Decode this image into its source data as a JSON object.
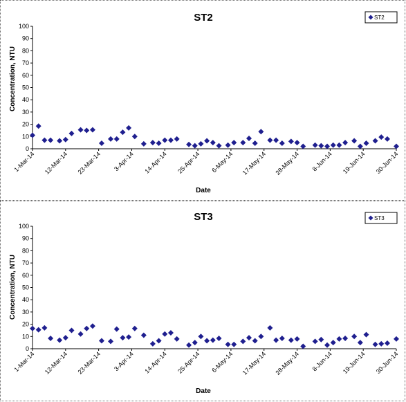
{
  "chart_data": [
    {
      "type": "scatter",
      "title": "ST2",
      "xlabel": "Date",
      "ylabel": "Concentration, NTU",
      "ylim": [
        0,
        100
      ],
      "yticks": [
        "0",
        "10",
        "20",
        "30",
        "40",
        "50",
        "60",
        "70",
        "80",
        "90",
        "100"
      ],
      "xlim": [
        "2014-03-01",
        "2014-06-30"
      ],
      "xticks": [
        "1-Mar-14",
        "12-Mar-14",
        "23-Mar-14",
        "3-Apr-14",
        "14-Apr-14",
        "25-Apr-14",
        "6-May-14",
        "17-May-14",
        "28-May-14",
        "8-Jun-14",
        "19-Jun-14",
        "30-Jun-14"
      ],
      "legend": "top-right",
      "grid": false,
      "marker_color": "#1f1f8f",
      "series": [
        {
          "name": "ST2",
          "points": [
            {
              "x": "2014-03-01",
              "y": 11
            },
            {
              "x": "2014-03-03",
              "y": 18.5
            },
            {
              "x": "2014-03-05",
              "y": 7
            },
            {
              "x": "2014-03-07",
              "y": 7
            },
            {
              "x": "2014-03-10",
              "y": 6.5
            },
            {
              "x": "2014-03-12",
              "y": 7.5
            },
            {
              "x": "2014-03-14",
              "y": 12.5
            },
            {
              "x": "2014-03-17",
              "y": 15.5
            },
            {
              "x": "2014-03-19",
              "y": 15
            },
            {
              "x": "2014-03-21",
              "y": 15.5
            },
            {
              "x": "2014-03-24",
              "y": 4.5
            },
            {
              "x": "2014-03-27",
              "y": 8
            },
            {
              "x": "2014-03-29",
              "y": 8
            },
            {
              "x": "2014-03-31",
              "y": 13.5
            },
            {
              "x": "2014-04-02",
              "y": 17
            },
            {
              "x": "2014-04-04",
              "y": 10
            },
            {
              "x": "2014-04-07",
              "y": 4
            },
            {
              "x": "2014-04-10",
              "y": 5
            },
            {
              "x": "2014-04-12",
              "y": 4.5
            },
            {
              "x": "2014-04-14",
              "y": 7
            },
            {
              "x": "2014-04-16",
              "y": 7
            },
            {
              "x": "2014-04-18",
              "y": 8
            },
            {
              "x": "2014-04-22",
              "y": 3.5
            },
            {
              "x": "2014-04-24",
              "y": 2.5
            },
            {
              "x": "2014-04-26",
              "y": 4
            },
            {
              "x": "2014-04-28",
              "y": 6.5
            },
            {
              "x": "2014-04-30",
              "y": 5
            },
            {
              "x": "2014-05-02",
              "y": 2.5
            },
            {
              "x": "2014-05-05",
              "y": 3
            },
            {
              "x": "2014-05-07",
              "y": 5
            },
            {
              "x": "2014-05-10",
              "y": 5
            },
            {
              "x": "2014-05-12",
              "y": 8.5
            },
            {
              "x": "2014-05-14",
              "y": 4.5
            },
            {
              "x": "2014-05-16",
              "y": 14
            },
            {
              "x": "2014-05-19",
              "y": 7
            },
            {
              "x": "2014-05-21",
              "y": 7
            },
            {
              "x": "2014-05-23",
              "y": 4.5
            },
            {
              "x": "2014-05-26",
              "y": 6
            },
            {
              "x": "2014-05-28",
              "y": 5
            },
            {
              "x": "2014-05-30",
              "y": 2
            },
            {
              "x": "2014-06-03",
              "y": 3
            },
            {
              "x": "2014-06-05",
              "y": 2.5
            },
            {
              "x": "2014-06-07",
              "y": 2
            },
            {
              "x": "2014-06-09",
              "y": 3
            },
            {
              "x": "2014-06-11",
              "y": 3
            },
            {
              "x": "2014-06-13",
              "y": 5
            },
            {
              "x": "2014-06-16",
              "y": 6.5
            },
            {
              "x": "2014-06-18",
              "y": 2
            },
            {
              "x": "2014-06-20",
              "y": 4.5
            },
            {
              "x": "2014-06-23",
              "y": 6.5
            },
            {
              "x": "2014-06-25",
              "y": 9.5
            },
            {
              "x": "2014-06-27",
              "y": 8
            },
            {
              "x": "2014-06-30",
              "y": 2
            }
          ]
        }
      ]
    },
    {
      "type": "scatter",
      "title": "ST3",
      "xlabel": "Date",
      "ylabel": "Concentration, NTU",
      "ylim": [
        0,
        100
      ],
      "yticks": [
        "0",
        "10",
        "20",
        "30",
        "40",
        "50",
        "60",
        "70",
        "80",
        "90",
        "100"
      ],
      "xlim": [
        "2014-03-01",
        "2014-06-30"
      ],
      "xticks": [
        "1-Mar-14",
        "12-Mar-14",
        "23-Mar-14",
        "3-Apr-14",
        "14-Apr-14",
        "25-Apr-14",
        "6-May-14",
        "17-May-14",
        "28-May-14",
        "8-Jun-14",
        "19-Jun-14",
        "30-Jun-14"
      ],
      "legend": "top-right",
      "grid": false,
      "marker_color": "#1f1f8f",
      "series": [
        {
          "name": "ST3",
          "points": [
            {
              "x": "2014-03-01",
              "y": 16.5
            },
            {
              "x": "2014-03-03",
              "y": 15.5
            },
            {
              "x": "2014-03-05",
              "y": 17
            },
            {
              "x": "2014-03-07",
              "y": 8.5
            },
            {
              "x": "2014-03-10",
              "y": 7
            },
            {
              "x": "2014-03-12",
              "y": 9
            },
            {
              "x": "2014-03-14",
              "y": 15
            },
            {
              "x": "2014-03-17",
              "y": 12
            },
            {
              "x": "2014-03-19",
              "y": 16.5
            },
            {
              "x": "2014-03-21",
              "y": 18.5
            },
            {
              "x": "2014-03-24",
              "y": 6.5
            },
            {
              "x": "2014-03-27",
              "y": 6
            },
            {
              "x": "2014-03-29",
              "y": 16
            },
            {
              "x": "2014-03-31",
              "y": 9
            },
            {
              "x": "2014-04-02",
              "y": 9.5
            },
            {
              "x": "2014-04-04",
              "y": 16.5
            },
            {
              "x": "2014-04-07",
              "y": 11
            },
            {
              "x": "2014-04-10",
              "y": 4
            },
            {
              "x": "2014-04-12",
              "y": 6.5
            },
            {
              "x": "2014-04-14",
              "y": 12
            },
            {
              "x": "2014-04-16",
              "y": 13
            },
            {
              "x": "2014-04-18",
              "y": 8
            },
            {
              "x": "2014-04-22",
              "y": 3
            },
            {
              "x": "2014-04-24",
              "y": 5
            },
            {
              "x": "2014-04-26",
              "y": 10
            },
            {
              "x": "2014-04-28",
              "y": 6.5
            },
            {
              "x": "2014-04-30",
              "y": 7
            },
            {
              "x": "2014-05-02",
              "y": 8.5
            },
            {
              "x": "2014-05-05",
              "y": 3.5
            },
            {
              "x": "2014-05-07",
              "y": 3.5
            },
            {
              "x": "2014-05-10",
              "y": 6
            },
            {
              "x": "2014-05-12",
              "y": 9
            },
            {
              "x": "2014-05-14",
              "y": 6.5
            },
            {
              "x": "2014-05-16",
              "y": 10
            },
            {
              "x": "2014-05-19",
              "y": 17
            },
            {
              "x": "2014-05-21",
              "y": 7
            },
            {
              "x": "2014-05-23",
              "y": 8.5
            },
            {
              "x": "2014-05-26",
              "y": 7
            },
            {
              "x": "2014-05-28",
              "y": 8
            },
            {
              "x": "2014-05-30",
              "y": 2
            },
            {
              "x": "2014-06-03",
              "y": 6
            },
            {
              "x": "2014-06-05",
              "y": 7.5
            },
            {
              "x": "2014-06-07",
              "y": 3
            },
            {
              "x": "2014-06-09",
              "y": 5
            },
            {
              "x": "2014-06-11",
              "y": 8
            },
            {
              "x": "2014-06-13",
              "y": 8.5
            },
            {
              "x": "2014-06-16",
              "y": 10
            },
            {
              "x": "2014-06-18",
              "y": 5
            },
            {
              "x": "2014-06-20",
              "y": 11.5
            },
            {
              "x": "2014-06-23",
              "y": 3.5
            },
            {
              "x": "2014-06-25",
              "y": 4
            },
            {
              "x": "2014-06-27",
              "y": 4.5
            },
            {
              "x": "2014-06-30",
              "y": 8
            }
          ]
        }
      ]
    }
  ]
}
